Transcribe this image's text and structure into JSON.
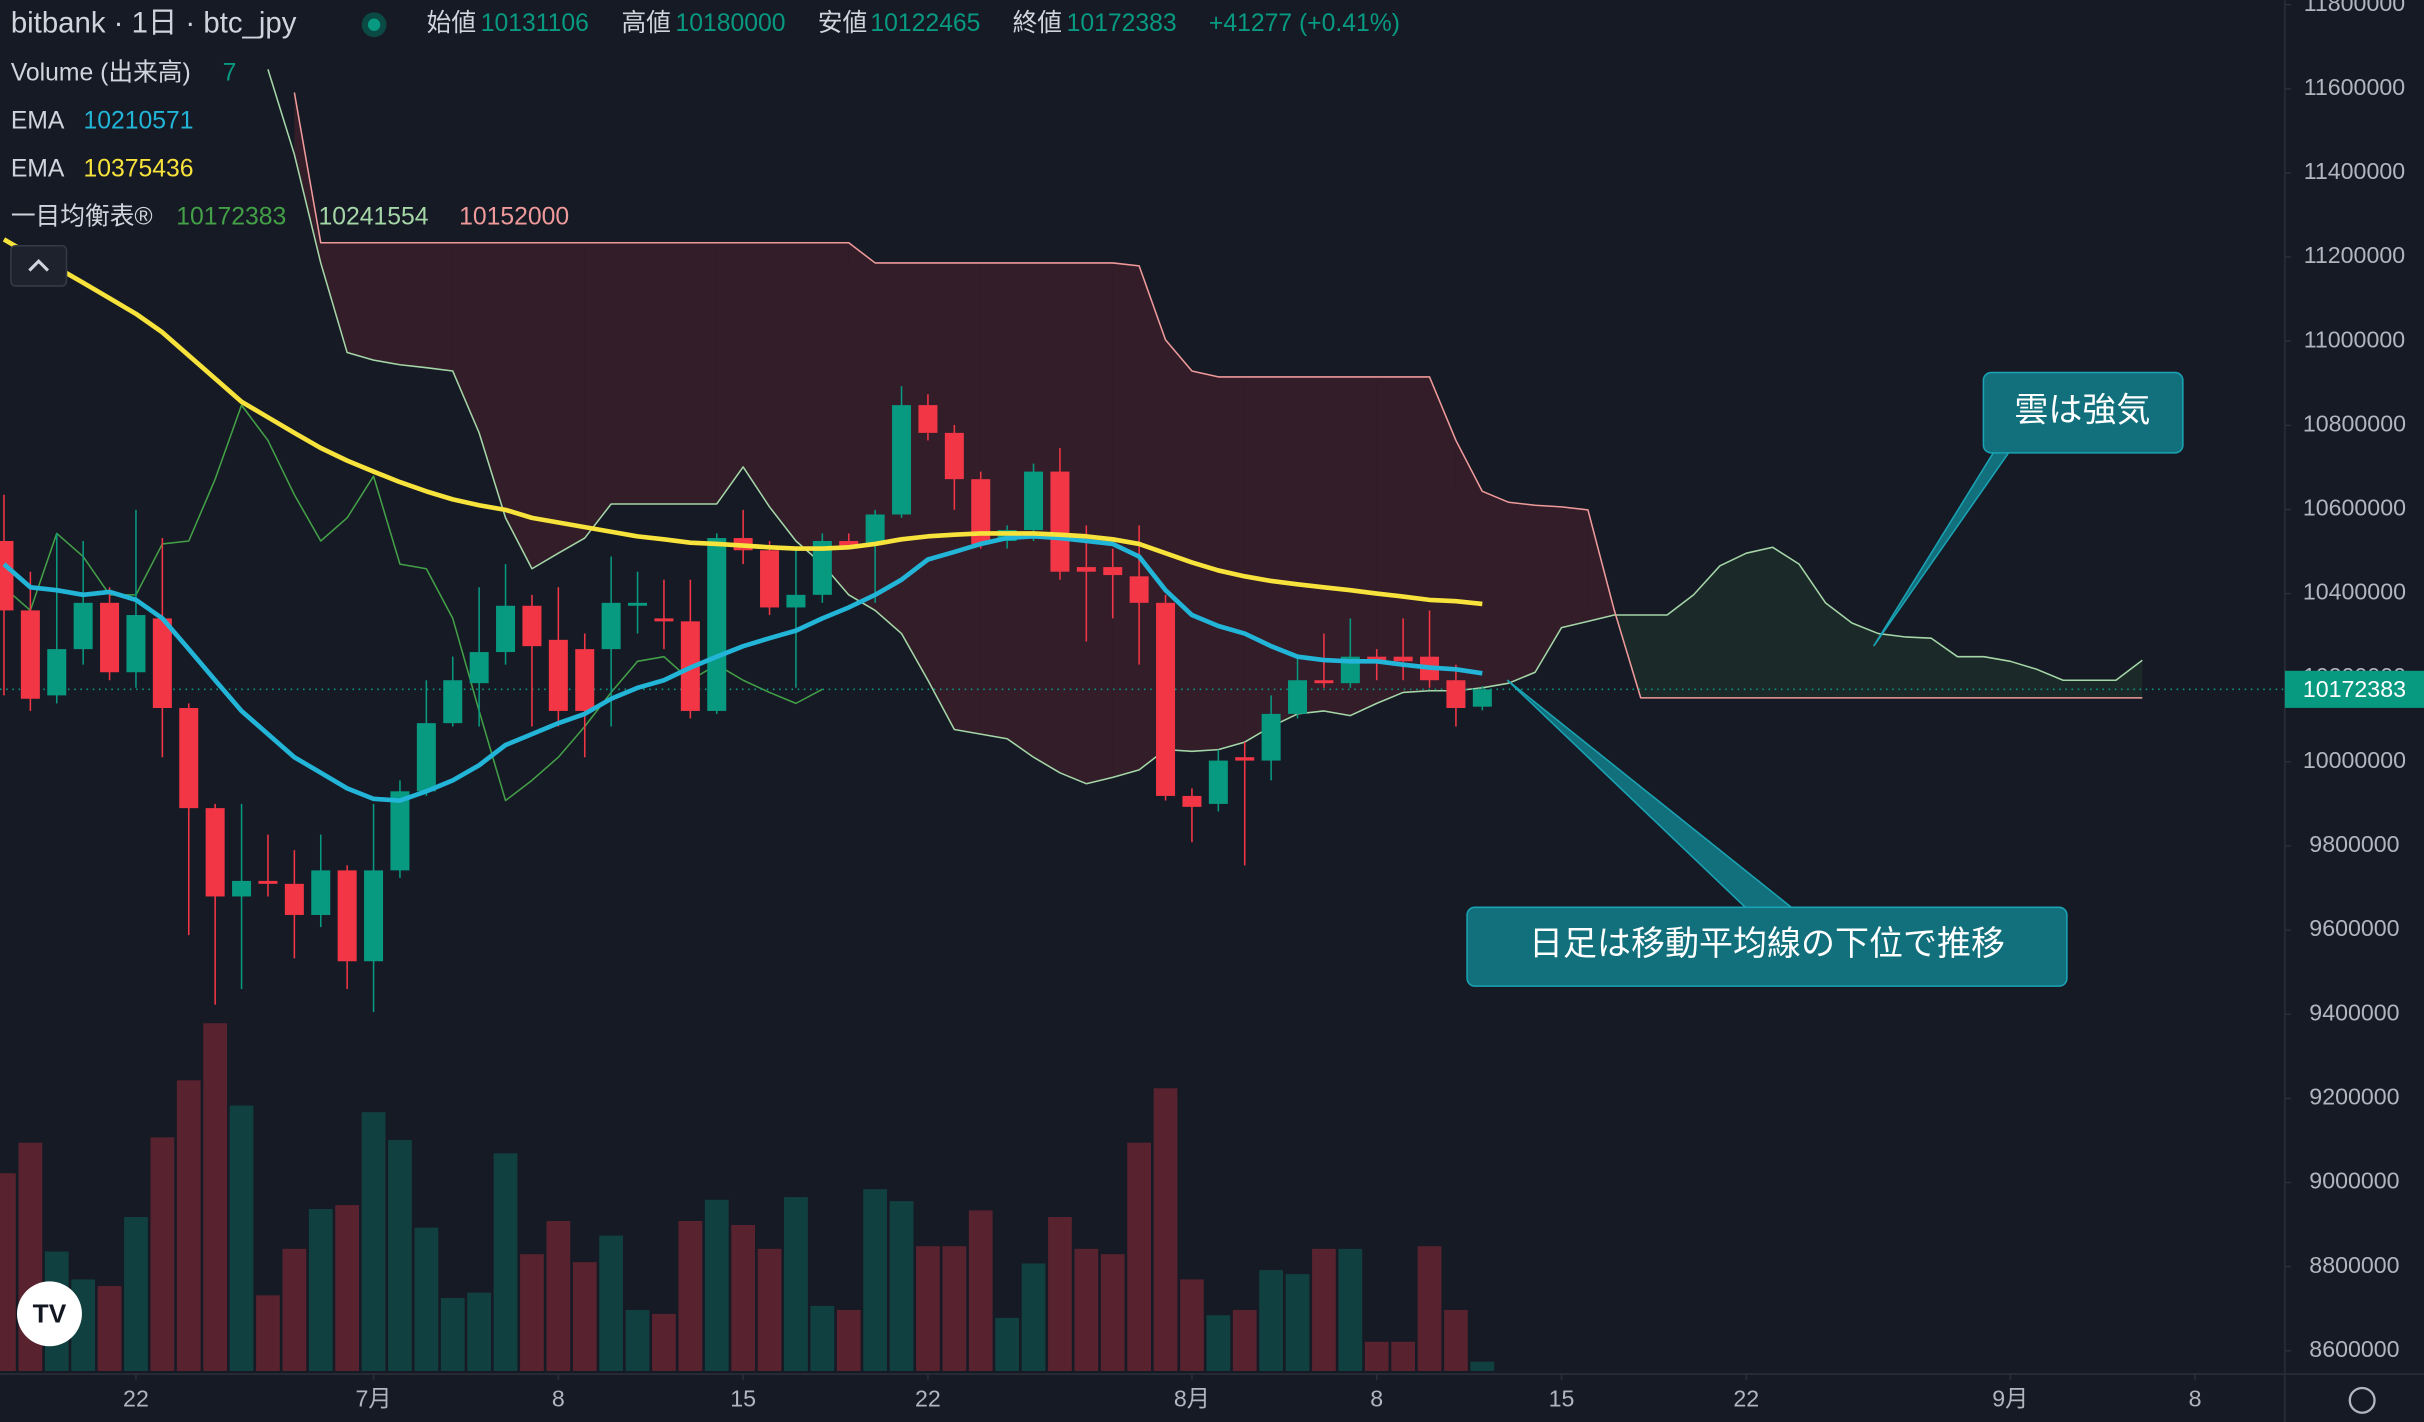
{
  "chart_data": {
    "type": "candlestick",
    "title": "bitbank · 1日 · btc_jpy",
    "ohlc_labels": [
      "始値",
      "高値",
      "安値",
      "終値"
    ],
    "change_label": "+41277 (+0.41%)",
    "up_color": "#089981",
    "down_color": "#f23645",
    "open": [
      10525000,
      10360000,
      10158000,
      10268000,
      10378000,
      10213000,
      10341000,
      10128000,
      9890000,
      9680000,
      9717000,
      9710000,
      9636000,
      9742000,
      9526000,
      9742000,
      9930000,
      10092000,
      10187000,
      10261000,
      10371000,
      10290000,
      10268000,
      10268000,
      10371000,
      10341000,
      10334000,
      10121000,
      10532000,
      10503000,
      10367000,
      10397000,
      10525000,
      10518000,
      10588000,
      10848000,
      10782000,
      10672000,
      10525000,
      10551000,
      10690000,
      10463000,
      10463000,
      10441000,
      10378000,
      9919000,
      9900000,
      10011000,
      10003000,
      10114000,
      10194000,
      10187000,
      10250000,
      10250000,
      10250000,
      10194000,
      10131106
    ],
    "high": [
      10635000,
      10452000,
      10543000,
      10525000,
      10415000,
      10599000,
      10532000,
      10139000,
      9900000,
      9900000,
      9827000,
      9790000,
      9827000,
      9754000,
      9900000,
      9956000,
      10194000,
      10250000,
      10415000,
      10470000,
      10397000,
      10415000,
      10305000,
      10488000,
      10452000,
      10433000,
      10433000,
      10543000,
      10599000,
      10525000,
      10507000,
      10543000,
      10543000,
      10599000,
      10893000,
      10874000,
      10801000,
      10690000,
      10562000,
      10709000,
      10746000,
      10562000,
      10507000,
      10562000,
      10397000,
      9937000,
      10029000,
      10047000,
      10158000,
      10250000,
      10305000,
      10341000,
      10268000,
      10341000,
      10360000,
      10231000,
      10180000
    ],
    "low": [
      10158000,
      10121000,
      10139000,
      10231000,
      10194000,
      10176000,
      10011000,
      9588000,
      9423000,
      9460000,
      9680000,
      9533000,
      9607000,
      9460000,
      9405000,
      9724000,
      9919000,
      10084000,
      10084000,
      10231000,
      10084000,
      10084000,
      10011000,
      10084000,
      10305000,
      10268000,
      10103000,
      10114000,
      10470000,
      10349000,
      10176000,
      10378000,
      10507000,
      10378000,
      10580000,
      10764000,
      10599000,
      10507000,
      10507000,
      10525000,
      10433000,
      10286000,
      10341000,
      10231000,
      9908000,
      9809000,
      9882000,
      9754000,
      9956000,
      10103000,
      10176000,
      10176000,
      10194000,
      10194000,
      10176000,
      10084000,
      10122465
    ],
    "close": [
      10360000,
      10150000,
      10268000,
      10378000,
      10213000,
      10349000,
      10128000,
      9890000,
      9680000,
      9717000,
      9710000,
      9636000,
      9742000,
      9526000,
      9742000,
      9930000,
      10092000,
      10194000,
      10261000,
      10371000,
      10275000,
      10121000,
      10121000,
      10378000,
      10378000,
      10334000,
      10121000,
      10532000,
      10503000,
      10367000,
      10397000,
      10525000,
      10514000,
      10588000,
      10848000,
      10782000,
      10672000,
      10518000,
      10551000,
      10690000,
      10452000,
      10452000,
      10444000,
      10378000,
      9919000,
      9893000,
      10003000,
      10003000,
      10114000,
      10194000,
      10187000,
      10250000,
      10242000,
      10239000,
      10194000,
      10128000,
      10172383
    ],
    "volume": {
      "name": "Volume (出来高)",
      "values": [
        149,
        172,
        90,
        69,
        64,
        116,
        176,
        219,
        262,
        200,
        57,
        92,
        122,
        125,
        195,
        174,
        108,
        55,
        59,
        164,
        88,
        113,
        82,
        102,
        46,
        43,
        113,
        129,
        110,
        92,
        131,
        49,
        46,
        137,
        128,
        94,
        94,
        121,
        40,
        81,
        116,
        92,
        88,
        172,
        213,
        69,
        42,
        46,
        76,
        73,
        92,
        92,
        22,
        22,
        94,
        46,
        7
      ]
    },
    "series": [
      {
        "name": "EMA",
        "color": "#22b5d8",
        "values": [
          10470000,
          10415000,
          10408000,
          10397000,
          10404000,
          10385000,
          10341000,
          10268000,
          10194000,
          10121000,
          10066000,
          10011000,
          9974000,
          9937000,
          9912000,
          9908000,
          9930000,
          9956000,
          9992000,
          10040000,
          10066000,
          10092000,
          10114000,
          10150000,
          10176000,
          10194000,
          10224000,
          10250000,
          10275000,
          10294000,
          10312000,
          10341000,
          10367000,
          10397000,
          10433000,
          10481000,
          10499000,
          10518000,
          10532000,
          10536000,
          10532000,
          10525000,
          10518000,
          10488000,
          10408000,
          10349000,
          10323000,
          10305000,
          10275000,
          10250000,
          10242000,
          10239000,
          10239000,
          10231000,
          10224000,
          10220000,
          10210571
        ]
      },
      {
        "name": "EMA",
        "color": "#f7e33b",
        "values": [
          11242000,
          11205000,
          11175000,
          11139000,
          11102000,
          11065000,
          11021000,
          10966000,
          10911000,
          10856000,
          10819000,
          10782000,
          10746000,
          10716000,
          10690000,
          10665000,
          10643000,
          10624000,
          10610000,
          10599000,
          10580000,
          10569000,
          10558000,
          10547000,
          10536000,
          10529000,
          10521000,
          10518000,
          10514000,
          10510000,
          10507000,
          10507000,
          10510000,
          10518000,
          10529000,
          10536000,
          10540000,
          10543000,
          10543000,
          10543000,
          10540000,
          10536000,
          10529000,
          10518000,
          10496000,
          10474000,
          10455000,
          10441000,
          10430000,
          10422000,
          10415000,
          10408000,
          10400000,
          10393000,
          10385000,
          10382000,
          10375436
        ]
      }
    ],
    "ichimoku": {
      "name": "一目均衡表®",
      "series": [
        {
          "color": "#43a047",
          "values": [
            10415000,
            10360000,
            10543000,
            10488000,
            10397000,
            10397000,
            10518000,
            10525000,
            10672000,
            10848000,
            10764000,
            10635000,
            10525000,
            10580000,
            10679000,
            10470000,
            10459000,
            10341000,
            10121000,
            9908000,
            9956000,
            10011000,
            10084000,
            10165000,
            10239000,
            10250000,
            10194000,
            10231000,
            10194000,
            10165000,
            10139000,
            10172383
          ]
        },
        {
          "color": "#a5d6a7",
          "values": [
            null,
            null,
            null,
            null,
            null,
            null,
            null,
            null,
            null,
            null,
            11646000,
            11444000,
            11186000,
            10973000,
            10955000,
            10944000,
            10937000,
            10929000,
            10782000,
            10580000,
            10459000,
            10496000,
            10532000,
            10613000,
            10613000,
            10613000,
            10613000,
            10613000,
            10701000,
            10606000,
            10525000,
            10470000,
            10397000,
            10360000,
            10305000,
            10194000,
            10077000,
            10066000,
            10055000,
            10011000,
            9974000,
            9948000,
            9963000,
            9981000,
            10029000,
            10025000,
            10029000,
            10047000,
            10084000,
            10114000,
            10121000,
            10110000,
            10139000,
            10165000,
            10169000,
            10169000,
            10176000,
            10187000,
            10213000,
            10319000,
            10334000,
            10349000,
            10349000,
            10349000,
            10397000,
            10466000,
            10496000,
            10510000,
            10470000,
            10378000,
            10330000,
            10305000,
            10297000,
            10294000,
            10250000,
            10250000,
            10239000,
            10220000,
            10194000,
            10194000,
            10194000,
            10241554
          ]
        },
        {
          "color": "#ef9a9a",
          "values": [
            null,
            null,
            null,
            null,
            null,
            null,
            null,
            null,
            null,
            null,
            null,
            11591000,
            11234000,
            11234000,
            11234000,
            11234000,
            11234000,
            11234000,
            11234000,
            11234000,
            11234000,
            11234000,
            11234000,
            11234000,
            11234000,
            11234000,
            11234000,
            11234000,
            11234000,
            11234000,
            11234000,
            11234000,
            11234000,
            11186000,
            11186000,
            11186000,
            11186000,
            11186000,
            11186000,
            11186000,
            11186000,
            11186000,
            11186000,
            11179000,
            11003000,
            10929000,
            10915000,
            10915000,
            10915000,
            10915000,
            10915000,
            10915000,
            10915000,
            10915000,
            10915000,
            10764000,
            10643000,
            10617000,
            10610000,
            10606000,
            10599000,
            10360000,
            10152000,
            10152000,
            10152000,
            10152000,
            10152000,
            10152000,
            10152000,
            10152000,
            10152000,
            10152000,
            10152000,
            10152000,
            10152000,
            10152000,
            10152000,
            10152000,
            10152000,
            10152000,
            10152000,
            10152000
          ]
        }
      ]
    },
    "ylim": [
      8552000,
      11811000
    ],
    "yticks": [
      8600000,
      8800000,
      9000000,
      9200000,
      9400000,
      9600000,
      9800000,
      10000000,
      10200000,
      10400000,
      10600000,
      10800000,
      11000000,
      11200000,
      11400000,
      11600000,
      11800000
    ],
    "xlim": [
      -0.15,
      86.4
    ],
    "xticks": [
      {
        "value": 5,
        "label": "22"
      },
      {
        "value": 14,
        "label": "7月"
      },
      {
        "value": 21,
        "label": "8"
      },
      {
        "value": 28,
        "label": "15"
      },
      {
        "value": 35,
        "label": "22"
      },
      {
        "value": 45,
        "label": "8月"
      },
      {
        "value": 52,
        "label": "8"
      },
      {
        "value": 59,
        "label": "15"
      },
      {
        "value": 66,
        "label": "22"
      },
      {
        "value": 76,
        "label": "9月"
      },
      {
        "value": 83,
        "label": "8"
      }
    ],
    "grid": false,
    "log_scale": false,
    "annotations": [
      {
        "text": "雲は強気"
      },
      {
        "text": "日足は移動平均線の下位で推移"
      }
    ]
  }
}
